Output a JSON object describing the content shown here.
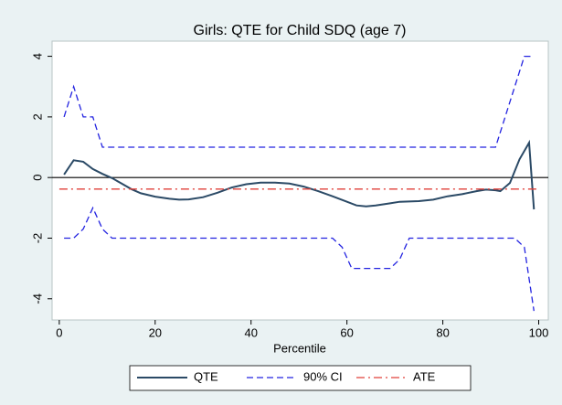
{
  "chart_data": {
    "type": "line",
    "title": "Girls: QTE for Child SDQ (age 7)",
    "x_label": "Percentile",
    "xlim": [
      -1.5,
      102
    ],
    "xticks": [
      0,
      20,
      40,
      60,
      80,
      100
    ],
    "ylim": [
      -4.7,
      4.5
    ],
    "yticks": [
      -4,
      -2,
      0,
      2,
      4
    ],
    "yline": 0,
    "legend": "bottom",
    "series": [
      {
        "name": "QTE",
        "color": "#2b4a66",
        "style": "solid",
        "x": [
          1,
          3,
          5,
          7,
          9,
          11,
          13,
          15,
          17,
          20,
          23,
          25,
          27,
          30,
          33,
          36,
          39,
          42,
          45,
          48,
          51,
          54,
          57,
          60,
          62,
          64,
          66,
          69,
          71,
          75,
          78,
          81,
          84,
          87,
          89,
          91,
          92,
          94,
          96,
          98,
          99
        ],
        "values": [
          0.1,
          0.57,
          0.52,
          0.28,
          0.12,
          -0.02,
          -0.2,
          -0.38,
          -0.52,
          -0.63,
          -0.7,
          -0.73,
          -0.72,
          -0.65,
          -0.5,
          -0.33,
          -0.22,
          -0.17,
          -0.17,
          -0.2,
          -0.3,
          -0.45,
          -0.62,
          -0.8,
          -0.92,
          -0.95,
          -0.92,
          -0.85,
          -0.8,
          -0.78,
          -0.73,
          -0.62,
          -0.55,
          -0.45,
          -0.4,
          -0.42,
          -0.45,
          -0.18,
          0.6,
          1.15,
          -1.05
        ]
      },
      {
        "name": "90% CI",
        "color": "#2323e0",
        "style": "dash",
        "x": [
          1,
          3,
          5,
          7,
          9,
          91,
          97,
          99
        ],
        "values": [
          2,
          3,
          2,
          2,
          1,
          1,
          4,
          4
        ]
      },
      {
        "color": "#2323e0",
        "style": "dash",
        "x": [
          1,
          3,
          5,
          7,
          9,
          11,
          57,
          59,
          61,
          69,
          71,
          73,
          95,
          97,
          99
        ],
        "values": [
          -2,
          -2,
          -1.7,
          -1,
          -1.7,
          -2,
          -2,
          -2.3,
          -3,
          -3,
          -2.7,
          -2,
          -2,
          -2.3,
          -4.4
        ]
      },
      {
        "name": "ATE",
        "color": "#e0403a",
        "style": "dashdot",
        "x": [
          0,
          100
        ],
        "values": [
          -0.38,
          -0.38
        ]
      }
    ]
  }
}
